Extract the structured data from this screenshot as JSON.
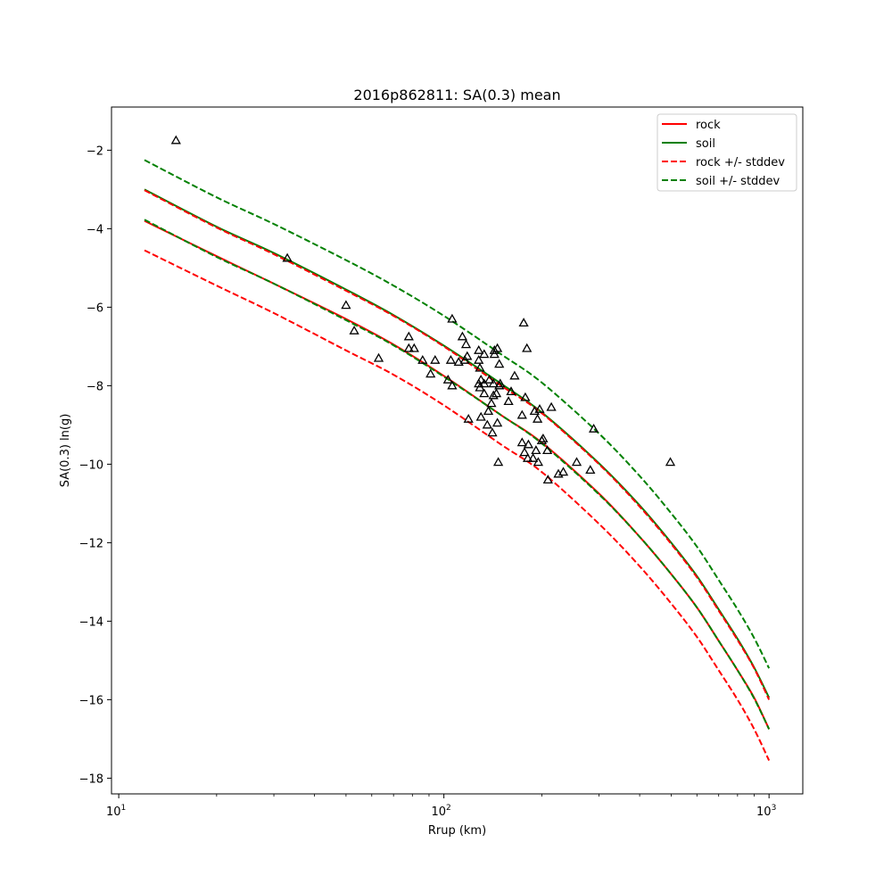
{
  "chart_data": {
    "type": "line",
    "title": "2016p862811: SA(0.3) mean",
    "xlabel": "Rrup (km)",
    "ylabel": "SA(0.3) ln(g)",
    "xscale": "log",
    "xlim": [
      9.5,
      1270
    ],
    "ylim": [
      -18.4,
      -0.9
    ],
    "xticks": [
      {
        "value": 10,
        "label": "10",
        "exp": "1"
      },
      {
        "value": 100,
        "label": "10",
        "exp": "2"
      },
      {
        "value": 1000,
        "label": "10",
        "exp": "3"
      }
    ],
    "yticks": [
      -2,
      -4,
      -6,
      -8,
      -10,
      -12,
      -14,
      -16,
      -18
    ],
    "ytick_labels": [
      "−2",
      "−4",
      "−6",
      "−8",
      "−10",
      "−12",
      "−14",
      "−16",
      "−18"
    ],
    "grid": false,
    "legend": {
      "position": "top-right",
      "entries": [
        "rock",
        "soil",
        "rock +/- stddev",
        "soil +/- stddev"
      ]
    },
    "colors": {
      "rock": "#ff0000",
      "soil": "#008000",
      "points": "#000000"
    },
    "series": [
      {
        "name": "rock",
        "style": "solid",
        "color": "#ff0000",
        "x": [
          12,
          20,
          30,
          50,
          70,
          100,
          150,
          200,
          300,
          400,
          500,
          600,
          700,
          800,
          900,
          1000
        ],
        "y": [
          -3.8,
          -4.7,
          -5.4,
          -6.3,
          -6.95,
          -7.75,
          -8.75,
          -9.45,
          -10.75,
          -11.85,
          -12.8,
          -13.65,
          -14.5,
          -15.25,
          -15.95,
          -16.75
        ]
      },
      {
        "name": "soil",
        "style": "solid",
        "color": "#008000",
        "x": [
          12,
          20,
          30,
          50,
          70,
          100,
          150,
          200,
          300,
          400,
          500,
          600,
          700,
          800,
          900,
          1000
        ],
        "y": [
          -3.0,
          -3.95,
          -4.62,
          -5.55,
          -6.2,
          -6.98,
          -7.95,
          -8.68,
          -9.98,
          -11.05,
          -12.0,
          -12.85,
          -13.7,
          -14.45,
          -15.18,
          -15.95
        ]
      },
      {
        "name": "rock +/- stddev",
        "style": "dashed",
        "color": "#ff0000",
        "x": [
          12,
          20,
          30,
          50,
          70,
          100,
          150,
          200,
          300,
          400,
          500,
          600,
          700,
          800,
          900,
          1000
        ],
        "y": [
          -3.02,
          -3.97,
          -4.65,
          -5.58,
          -6.22,
          -7.0,
          -8.0,
          -8.7,
          -10.0,
          -11.08,
          -12.03,
          -12.88,
          -13.73,
          -14.48,
          -15.2,
          -16.0
        ]
      },
      {
        "name": "rock +/- stddev",
        "style": "dashed",
        "color": "#ff0000",
        "x": [
          12,
          20,
          30,
          50,
          70,
          100,
          150,
          200,
          300,
          400,
          500,
          600,
          700,
          800,
          900,
          1000
        ],
        "y": [
          -4.55,
          -5.45,
          -6.15,
          -7.1,
          -7.72,
          -8.5,
          -9.5,
          -10.2,
          -11.52,
          -12.6,
          -13.55,
          -14.4,
          -15.25,
          -16.0,
          -16.75,
          -17.55
        ]
      },
      {
        "name": "soil +/- stddev",
        "style": "dashed",
        "color": "#008000",
        "x": [
          12,
          20,
          30,
          50,
          70,
          100,
          150,
          200,
          300,
          400,
          500,
          600,
          700,
          800,
          900,
          1000
        ],
        "y": [
          -2.25,
          -3.2,
          -3.88,
          -4.8,
          -5.45,
          -6.22,
          -7.2,
          -7.92,
          -9.22,
          -10.3,
          -11.25,
          -12.1,
          -12.95,
          -13.7,
          -14.43,
          -15.2
        ]
      },
      {
        "name": "soil +/- stddev",
        "style": "dashed",
        "color": "#008000",
        "x": [
          12,
          20,
          30,
          50,
          70,
          100,
          150,
          200,
          300,
          400,
          500,
          600,
          700,
          800,
          900,
          1000
        ],
        "y": [
          -3.77,
          -4.72,
          -5.4,
          -6.33,
          -6.97,
          -7.77,
          -8.75,
          -9.47,
          -10.77,
          -11.85,
          -12.8,
          -13.65,
          -14.5,
          -15.25,
          -15.97,
          -16.75
        ]
      }
    ],
    "points": [
      [
        15,
        -1.75
      ],
      [
        33,
        -4.75
      ],
      [
        50,
        -5.95
      ],
      [
        53,
        -6.6
      ],
      [
        63,
        -7.3
      ],
      [
        78,
        -6.75
      ],
      [
        78,
        -7.05
      ],
      [
        81,
        -7.05
      ],
      [
        86,
        -7.35
      ],
      [
        91,
        -7.7
      ],
      [
        94,
        -7.35
      ],
      [
        103,
        -7.85
      ],
      [
        105,
        -7.35
      ],
      [
        106,
        -8.0
      ],
      [
        106,
        -6.3
      ],
      [
        111,
        -7.4
      ],
      [
        114,
        -6.75
      ],
      [
        116,
        -7.35
      ],
      [
        117,
        -6.95
      ],
      [
        118,
        -7.25
      ],
      [
        119,
        -8.85
      ],
      [
        128,
        -7.1
      ],
      [
        128,
        -7.35
      ],
      [
        128,
        -7.95
      ],
      [
        129,
        -7.55
      ],
      [
        129,
        -8.05
      ],
      [
        130,
        -7.85
      ],
      [
        130,
        -8.8
      ],
      [
        133,
        -7.2
      ],
      [
        133,
        -7.95
      ],
      [
        133,
        -8.2
      ],
      [
        136,
        -9.0
      ],
      [
        137,
        -8.65
      ],
      [
        138,
        -7.85
      ],
      [
        140,
        -8.45
      ],
      [
        141,
        -9.2
      ],
      [
        142,
        -7.95
      ],
      [
        142,
        -8.25
      ],
      [
        143,
        -7.2
      ],
      [
        143,
        -7.1
      ],
      [
        145,
        -8.2
      ],
      [
        146,
        -8.95
      ],
      [
        146,
        -7.05
      ],
      [
        147,
        -9.95
      ],
      [
        148,
        -7.45
      ],
      [
        148,
        -8.0
      ],
      [
        149,
        -7.95
      ],
      [
        158,
        -8.4
      ],
      [
        161,
        -8.15
      ],
      [
        165,
        -7.75
      ],
      [
        174,
        -8.75
      ],
      [
        174,
        -9.45
      ],
      [
        176,
        -6.4
      ],
      [
        177,
        -9.7
      ],
      [
        178,
        -8.3
      ],
      [
        180,
        -7.05
      ],
      [
        181,
        -9.85
      ],
      [
        182,
        -9.5
      ],
      [
        188,
        -9.85
      ],
      [
        190,
        -8.65
      ],
      [
        192,
        -9.65
      ],
      [
        194,
        -8.85
      ],
      [
        195,
        -9.95
      ],
      [
        197,
        -8.6
      ],
      [
        200,
        -9.4
      ],
      [
        202,
        -9.35
      ],
      [
        208,
        -9.65
      ],
      [
        209,
        -10.4
      ],
      [
        214,
        -8.55
      ],
      [
        225,
        -10.25
      ],
      [
        233,
        -10.2
      ],
      [
        256,
        -9.95
      ],
      [
        282,
        -10.15
      ],
      [
        289,
        -9.1
      ],
      [
        497,
        -9.95
      ]
    ]
  }
}
